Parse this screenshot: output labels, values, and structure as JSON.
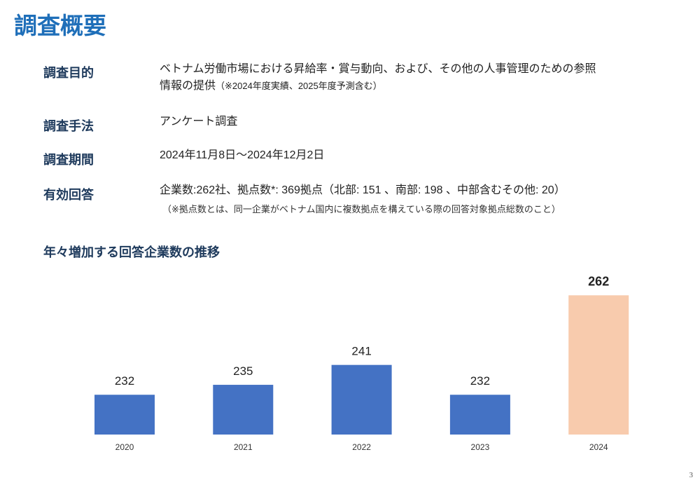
{
  "title": "調査概要",
  "rows": [
    {
      "label": "調査目的",
      "value": "ベトナム労働市場における昇給率・賞与動向、および、その他の人事管理のための参照",
      "value2": "情報の提供",
      "note": "（※2024年度実績、2025年度予測含む）"
    },
    {
      "label": "調査手法",
      "value": "アンケート調査"
    },
    {
      "label": "調査期間",
      "value": "2024年11月8日～2024年12月2日"
    },
    {
      "label": "有効回答",
      "value": "企業数:262社、拠点数*: 369拠点（北部: 151 、南部: 198 、中部含むその他: 20）",
      "note": "（※拠点数とは、同一企業がベトナム国内に複数拠点を構えている際の回答対象拠点総数のこと）"
    }
  ],
  "chart_title": "年々増加する回答企業数の推移",
  "page_number": "3",
  "chart_data": {
    "type": "bar",
    "categories": [
      "2020",
      "2021",
      "2022",
      "2023",
      "2024"
    ],
    "values": [
      232,
      235,
      241,
      232,
      262
    ],
    "colors": [
      "#4472c4",
      "#4472c4",
      "#4472c4",
      "#4472c4",
      "#f8cbad"
    ],
    "ylim": [
      220,
      265
    ],
    "grid": false,
    "data_labels": true
  }
}
